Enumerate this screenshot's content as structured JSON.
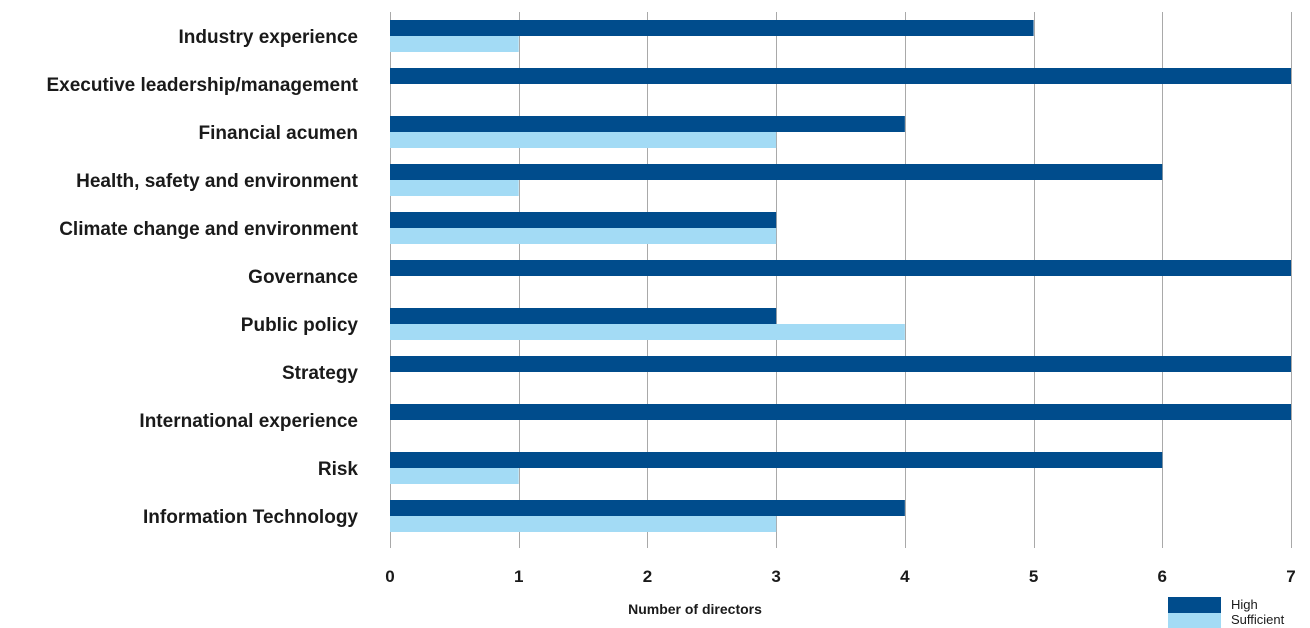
{
  "chart_data": {
    "type": "bar",
    "orientation": "horizontal",
    "title": "",
    "xlabel": "Number of directors",
    "ylabel": "",
    "xlim": [
      0,
      7
    ],
    "xticks": [
      0,
      1,
      2,
      3,
      4,
      5,
      6,
      7
    ],
    "grid": true,
    "legend_position": "bottom-right",
    "categories": [
      "Industry experience",
      "Executive leadership/management",
      "Financial acumen",
      "Health, safety and environment",
      "Climate change and environment",
      "Governance",
      "Public policy",
      "Strategy",
      "International experience",
      "Risk",
      "Information Technology"
    ],
    "series": [
      {
        "name": "High",
        "color": "#004c8c",
        "values": [
          5,
          7,
          4,
          6,
          3,
          7,
          3,
          7,
          7,
          6,
          4
        ]
      },
      {
        "name": "Sufficient",
        "color": "#a3dbf5",
        "values": [
          1,
          0,
          3,
          1,
          3,
          0,
          4,
          0,
          0,
          1,
          3
        ]
      }
    ]
  }
}
